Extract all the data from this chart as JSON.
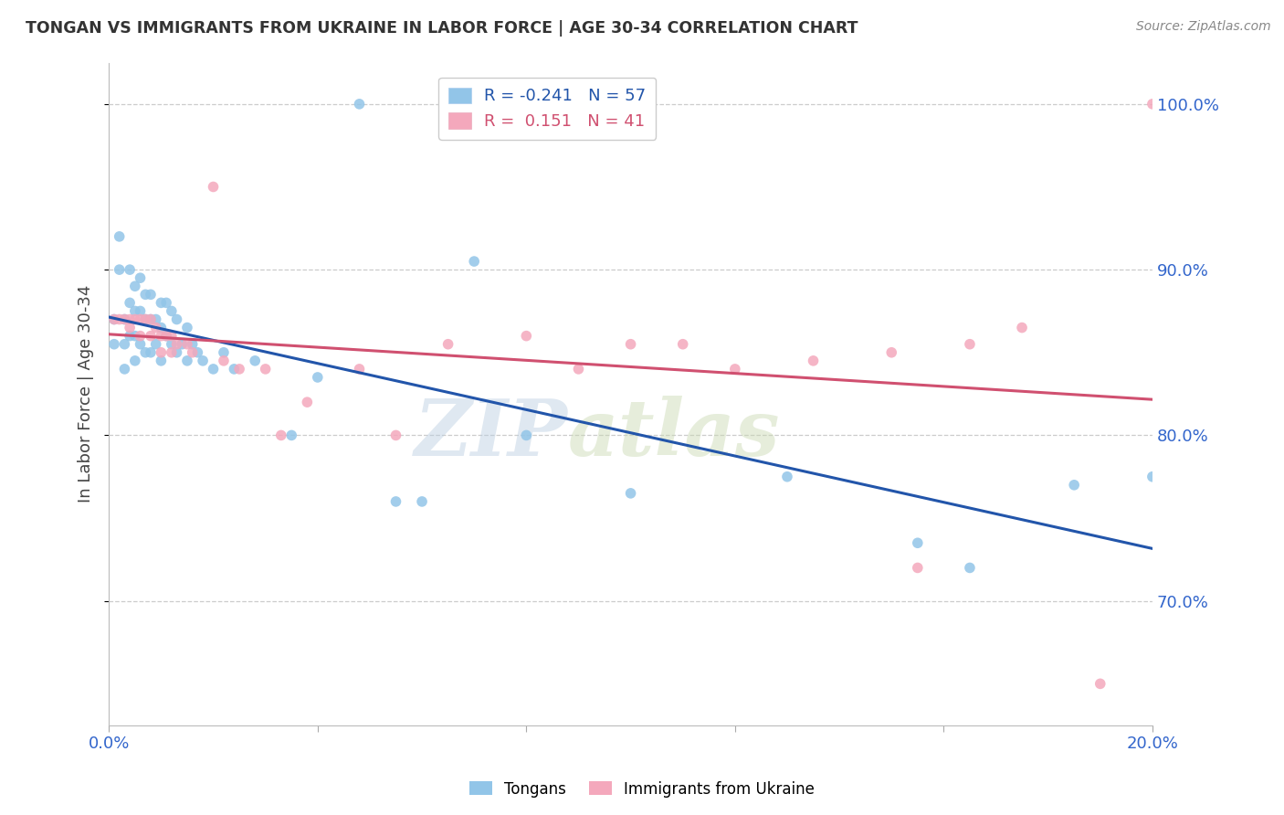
{
  "title": "TONGAN VS IMMIGRANTS FROM UKRAINE IN LABOR FORCE | AGE 30-34 CORRELATION CHART",
  "source": "Source: ZipAtlas.com",
  "ylabel_label": "In Labor Force | Age 30-34",
  "xlim": [
    0.0,
    0.2
  ],
  "ylim": [
    0.625,
    1.025
  ],
  "yticks": [
    0.7,
    0.8,
    0.9,
    1.0
  ],
  "yticklabels": [
    "70.0%",
    "80.0%",
    "90.0%",
    "100.0%"
  ],
  "blue_R": -0.241,
  "blue_N": 57,
  "pink_R": 0.151,
  "pink_N": 41,
  "blue_color": "#92C5E8",
  "pink_color": "#F4A8BC",
  "blue_line_color": "#2255AA",
  "pink_line_color": "#D05070",
  "marker_size": 70,
  "blue_points_x": [
    0.001,
    0.001,
    0.002,
    0.002,
    0.003,
    0.003,
    0.003,
    0.004,
    0.004,
    0.004,
    0.005,
    0.005,
    0.005,
    0.005,
    0.006,
    0.006,
    0.006,
    0.007,
    0.007,
    0.007,
    0.008,
    0.008,
    0.008,
    0.009,
    0.009,
    0.01,
    0.01,
    0.01,
    0.011,
    0.011,
    0.012,
    0.012,
    0.013,
    0.013,
    0.014,
    0.015,
    0.015,
    0.016,
    0.017,
    0.018,
    0.02,
    0.022,
    0.024,
    0.028,
    0.035,
    0.04,
    0.048,
    0.055,
    0.06,
    0.07,
    0.08,
    0.1,
    0.13,
    0.155,
    0.165,
    0.185,
    0.2
  ],
  "blue_points_y": [
    0.87,
    0.855,
    0.92,
    0.9,
    0.87,
    0.855,
    0.84,
    0.9,
    0.88,
    0.86,
    0.89,
    0.875,
    0.86,
    0.845,
    0.895,
    0.875,
    0.855,
    0.885,
    0.87,
    0.85,
    0.885,
    0.87,
    0.85,
    0.87,
    0.855,
    0.88,
    0.865,
    0.845,
    0.88,
    0.86,
    0.875,
    0.855,
    0.87,
    0.85,
    0.855,
    0.865,
    0.845,
    0.855,
    0.85,
    0.845,
    0.84,
    0.85,
    0.84,
    0.845,
    0.8,
    0.835,
    1.0,
    0.76,
    0.76,
    0.905,
    0.8,
    0.765,
    0.775,
    0.735,
    0.72,
    0.77,
    0.775
  ],
  "pink_points_x": [
    0.001,
    0.002,
    0.003,
    0.004,
    0.004,
    0.005,
    0.006,
    0.006,
    0.007,
    0.008,
    0.008,
    0.009,
    0.01,
    0.01,
    0.011,
    0.012,
    0.012,
    0.013,
    0.015,
    0.016,
    0.02,
    0.022,
    0.025,
    0.03,
    0.033,
    0.038,
    0.048,
    0.055,
    0.065,
    0.08,
    0.09,
    0.1,
    0.11,
    0.12,
    0.135,
    0.15,
    0.155,
    0.165,
    0.175,
    0.19,
    0.2
  ],
  "pink_points_y": [
    0.87,
    0.87,
    0.87,
    0.87,
    0.865,
    0.87,
    0.87,
    0.86,
    0.87,
    0.87,
    0.86,
    0.865,
    0.86,
    0.85,
    0.86,
    0.86,
    0.85,
    0.855,
    0.855,
    0.85,
    0.95,
    0.845,
    0.84,
    0.84,
    0.8,
    0.82,
    0.84,
    0.8,
    0.855,
    0.86,
    0.84,
    0.855,
    0.855,
    0.84,
    0.845,
    0.85,
    0.72,
    0.855,
    0.865,
    0.65,
    1.0
  ],
  "watermark_zip": "ZIP",
  "watermark_atlas": "atlas",
  "legend_blue_label": "Tongans",
  "legend_pink_label": "Immigrants from Ukraine",
  "background_color": "#FFFFFF",
  "grid_color": "#CCCCCC"
}
